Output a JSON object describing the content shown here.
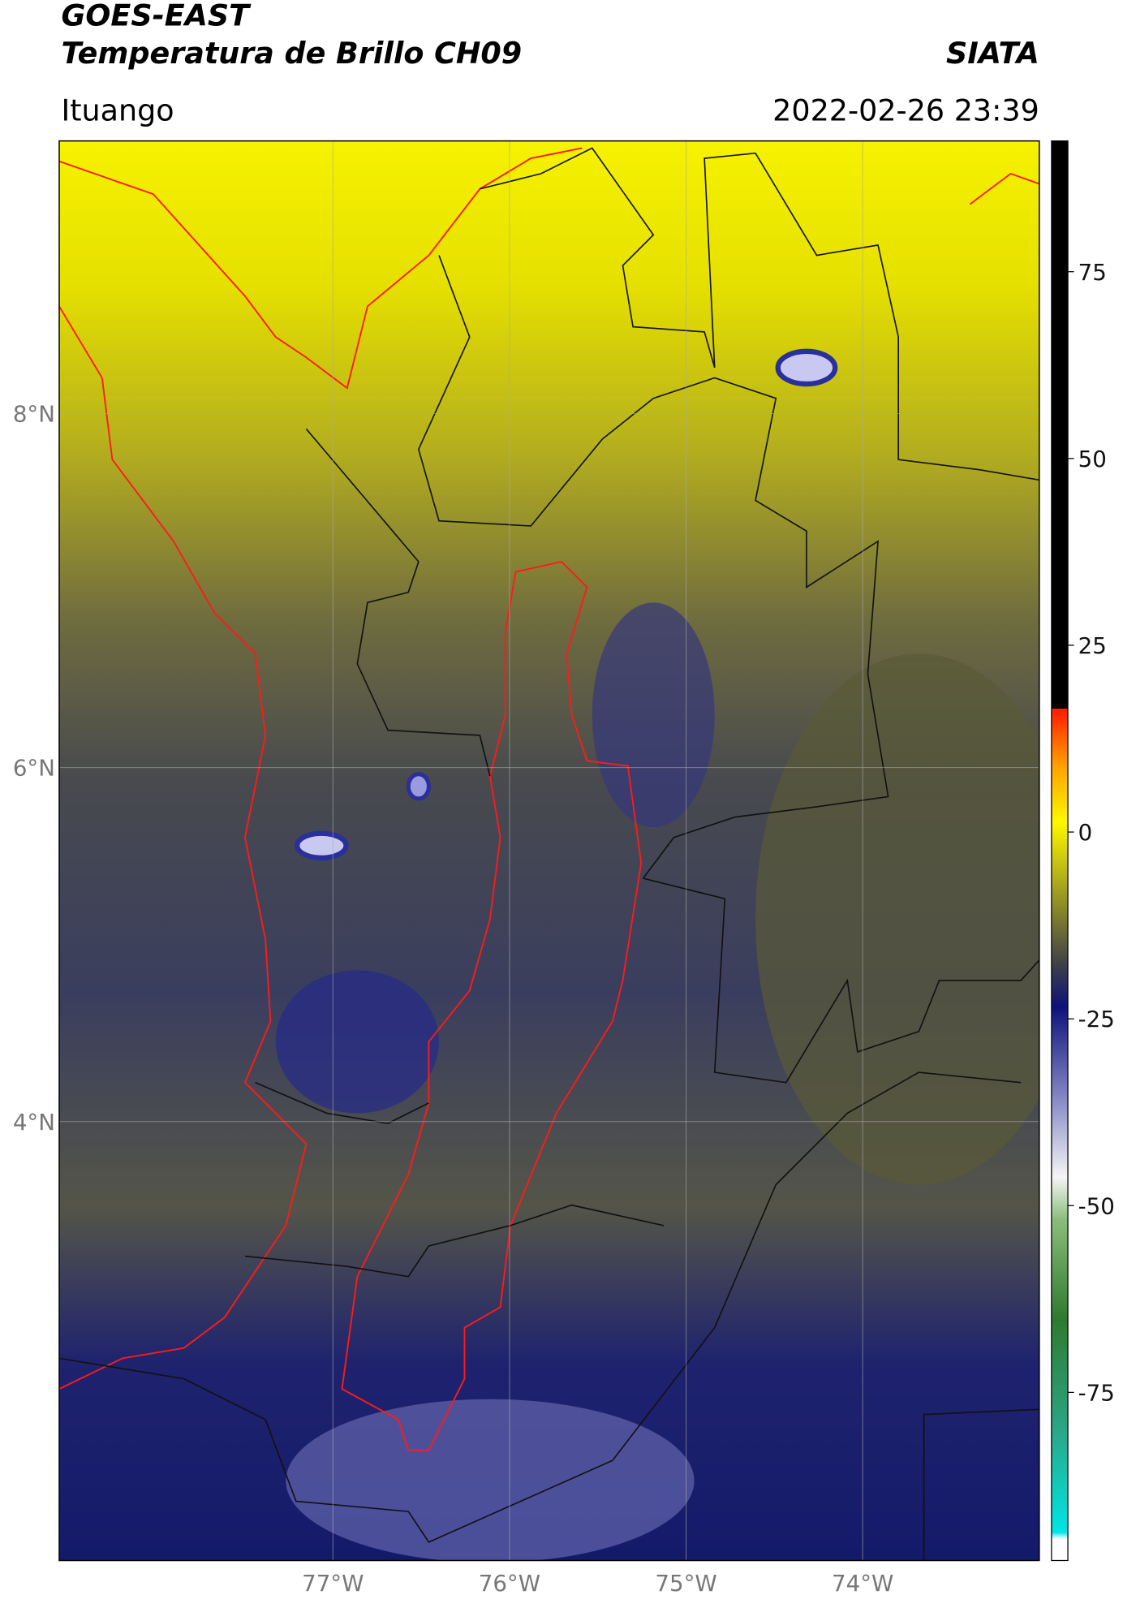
{
  "header": {
    "title": "GOES-EAST",
    "subtitle": "Temperatura de Brillo CH09",
    "source": "SIATA",
    "region": "Ituango",
    "datetime": "2022-02-26 23:39"
  },
  "map": {
    "lat_lim": [
      1.52,
      9.54
    ],
    "lon_lim": [
      -78.55,
      -73.0
    ],
    "lat_ticks": [
      {
        "value": 8,
        "label": "8°N"
      },
      {
        "value": 6,
        "label": "6°N"
      },
      {
        "value": 4,
        "label": "4°N"
      }
    ],
    "lon_ticks": [
      {
        "value": -77,
        "label": "77°W"
      },
      {
        "value": -76,
        "label": "76°W"
      },
      {
        "value": -75,
        "label": "75°W"
      },
      {
        "value": -74,
        "label": "74°W"
      }
    ],
    "grid": true
  },
  "colorbar": {
    "lim": [
      -97.5,
      92.5
    ],
    "ticks": [
      75,
      50,
      25,
      0,
      -25,
      -50,
      -75
    ]
  }
}
